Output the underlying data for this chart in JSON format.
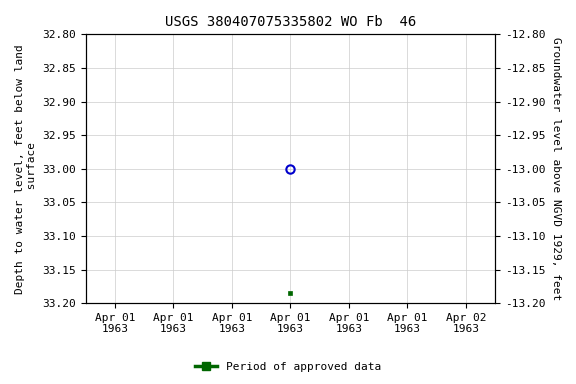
{
  "title": "USGS 380407075335802 WO Fb  46",
  "ylabel_left": "Depth to water level, feet below land\n surface",
  "ylabel_right": "Groundwater level above NGVD 1929, feet",
  "ylim_left": [
    32.8,
    33.2
  ],
  "ylim_right": [
    -12.8,
    -13.2
  ],
  "yticks_left": [
    32.8,
    32.85,
    32.9,
    32.95,
    33.0,
    33.05,
    33.1,
    33.15,
    33.2
  ],
  "yticks_right": [
    -12.8,
    -12.85,
    -12.9,
    -12.95,
    -13.0,
    -13.05,
    -13.1,
    -13.15,
    -13.2
  ],
  "xtick_positions": [
    0,
    1,
    2,
    3,
    4,
    5,
    6
  ],
  "xtick_labels": [
    "Apr 01\n1963",
    "Apr 01\n1963",
    "Apr 01\n1963",
    "Apr 01\n1963",
    "Apr 01\n1963",
    "Apr 01\n1963",
    "Apr 02\n1963"
  ],
  "xlim": [
    -0.5,
    6.5
  ],
  "blue_point_x": 3,
  "blue_point_y": 33.0,
  "green_point_x": 3,
  "green_point_y": 33.185,
  "background_color": "#ffffff",
  "grid_color": "#cccccc",
  "plot_bg_color": "#ffffff",
  "blue_color": "#0000cc",
  "green_color": "#006600",
  "legend_label": "Period of approved data",
  "title_fontsize": 10,
  "axis_label_fontsize": 8,
  "tick_fontsize": 8
}
